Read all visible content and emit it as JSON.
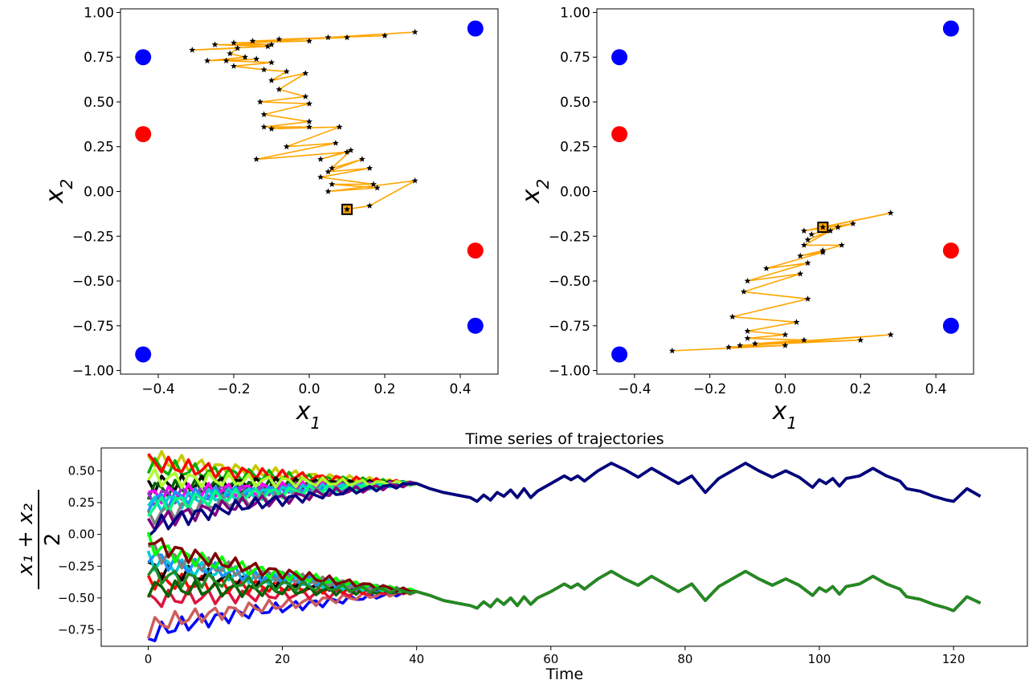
{
  "chart_data": [
    {
      "type": "scatter",
      "panel": "top-left",
      "xlabel": "x",
      "xlabel_sub": "1",
      "ylabel": "x",
      "ylabel_sub": "2",
      "xlim": [
        -0.5,
        0.5
      ],
      "ylim": [
        -1.02,
        1.02
      ],
      "xticks": [
        -0.4,
        -0.2,
        0.0,
        0.2,
        0.4
      ],
      "xtick_labels": [
        "−0.4",
        "−0.2",
        "0.0",
        "0.2",
        "0.4"
      ],
      "yticks": [
        -1.0,
        -0.75,
        -0.5,
        -0.25,
        0.0,
        0.25,
        0.5,
        0.75,
        1.0
      ],
      "ytick_labels": [
        "−1.00",
        "−0.75",
        "−0.50",
        "−0.25",
        "0.00",
        "0.25",
        "0.50",
        "0.75",
        "1.00"
      ],
      "colors": {
        "blue": "#0000ff",
        "red": "#ff0000",
        "path": "#ffa500",
        "marker": "#000000"
      },
      "blue_points": [
        [
          -0.44,
          0.75
        ],
        [
          0.44,
          0.91
        ],
        [
          -0.44,
          -0.91
        ],
        [
          0.44,
          -0.75
        ]
      ],
      "red_points": [
        [
          -0.44,
          0.32
        ],
        [
          0.44,
          -0.33
        ]
      ],
      "start": [
        0.1,
        -0.1
      ],
      "trajectory": [
        [
          0.1,
          -0.1
        ],
        [
          0.16,
          -0.08
        ],
        [
          0.28,
          0.06
        ],
        [
          0.05,
          0.0
        ],
        [
          0.18,
          0.02
        ],
        [
          0.06,
          0.04
        ],
        [
          0.17,
          0.04
        ],
        [
          0.03,
          0.08
        ],
        [
          0.16,
          0.13
        ],
        [
          0.05,
          0.11
        ],
        [
          0.14,
          0.18
        ],
        [
          0.06,
          0.13
        ],
        [
          0.11,
          0.23
        ],
        [
          0.03,
          0.18
        ],
        [
          0.1,
          0.22
        ],
        [
          -0.14,
          0.18
        ],
        [
          0.07,
          0.27
        ],
        [
          -0.06,
          0.25
        ],
        [
          0.08,
          0.36
        ],
        [
          -0.1,
          0.35
        ],
        [
          0.0,
          0.36
        ],
        [
          -0.12,
          0.36
        ],
        [
          0.0,
          0.39
        ],
        [
          -0.12,
          0.43
        ],
        [
          0.0,
          0.49
        ],
        [
          -0.13,
          0.5
        ],
        [
          -0.01,
          0.53
        ],
        [
          -0.08,
          0.57
        ],
        [
          -0.01,
          0.66
        ],
        [
          -0.1,
          0.62
        ],
        [
          -0.06,
          0.67
        ],
        [
          -0.12,
          0.68
        ],
        [
          -0.2,
          0.7
        ],
        [
          -0.1,
          0.72
        ],
        [
          -0.22,
          0.73
        ],
        [
          -0.14,
          0.74
        ],
        [
          -0.27,
          0.73
        ],
        [
          -0.17,
          0.75
        ],
        [
          -0.21,
          0.77
        ],
        [
          -0.19,
          0.8
        ],
        [
          -0.31,
          0.79
        ],
        [
          -0.11,
          0.81
        ],
        [
          -0.25,
          0.82
        ],
        [
          -0.1,
          0.82
        ],
        [
          -0.2,
          0.83
        ],
        [
          0.0,
          0.84
        ],
        [
          -0.15,
          0.84
        ],
        [
          0.1,
          0.86
        ],
        [
          -0.08,
          0.85
        ],
        [
          0.2,
          0.87
        ],
        [
          0.05,
          0.86
        ],
        [
          0.28,
          0.89
        ]
      ]
    },
    {
      "type": "scatter",
      "panel": "top-right",
      "xlabel": "x",
      "xlabel_sub": "1",
      "ylabel": "x",
      "ylabel_sub": "2",
      "xlim": [
        -0.5,
        0.5
      ],
      "ylim": [
        -1.02,
        1.02
      ],
      "xticks": [
        -0.4,
        -0.2,
        0.0,
        0.2,
        0.4
      ],
      "xtick_labels": [
        "−0.4",
        "−0.2",
        "0.0",
        "0.2",
        "0.4"
      ],
      "yticks": [
        -1.0,
        -0.75,
        -0.5,
        -0.25,
        0.0,
        0.25,
        0.5,
        0.75,
        1.0
      ],
      "ytick_labels": [
        "−1.00",
        "−0.75",
        "−0.50",
        "−0.25",
        "0.00",
        "0.25",
        "0.50",
        "0.75",
        "1.00"
      ],
      "colors": {
        "blue": "#0000ff",
        "red": "#ff0000",
        "path": "#ffa500",
        "marker": "#000000"
      },
      "blue_points": [
        [
          -0.44,
          0.75
        ],
        [
          0.44,
          0.91
        ],
        [
          -0.44,
          -0.91
        ],
        [
          0.44,
          -0.75
        ]
      ],
      "red_points": [
        [
          -0.44,
          0.32
        ],
        [
          0.44,
          -0.33
        ]
      ],
      "start": [
        0.1,
        -0.2
      ],
      "trajectory": [
        [
          0.1,
          -0.2
        ],
        [
          0.28,
          -0.12
        ],
        [
          0.05,
          -0.22
        ],
        [
          0.18,
          -0.18
        ],
        [
          0.07,
          -0.24
        ],
        [
          0.14,
          -0.2
        ],
        [
          0.06,
          -0.27
        ],
        [
          0.12,
          -0.22
        ],
        [
          0.05,
          -0.3
        ],
        [
          0.15,
          -0.3
        ],
        [
          0.1,
          -0.33
        ],
        [
          0.04,
          -0.36
        ],
        [
          0.1,
          -0.34
        ],
        [
          -0.05,
          -0.43
        ],
        [
          0.06,
          -0.4
        ],
        [
          -0.1,
          -0.5
        ],
        [
          0.04,
          -0.46
        ],
        [
          -0.11,
          -0.56
        ],
        [
          0.06,
          -0.6
        ],
        [
          -0.14,
          -0.7
        ],
        [
          0.03,
          -0.73
        ],
        [
          -0.1,
          -0.78
        ],
        [
          0.0,
          -0.8
        ],
        [
          -0.1,
          -0.82
        ],
        [
          0.05,
          -0.83
        ],
        [
          -0.08,
          -0.85
        ],
        [
          0.2,
          -0.83
        ],
        [
          -0.12,
          -0.86
        ],
        [
          0.28,
          -0.8
        ],
        [
          -0.15,
          -0.87
        ],
        [
          0.0,
          -0.86
        ],
        [
          -0.3,
          -0.89
        ]
      ]
    },
    {
      "type": "line",
      "panel": "bottom",
      "title": "Time series of trajectories",
      "xlabel": "Time",
      "ylabel_num": "x₁ + x₂",
      "ylabel_den": "2",
      "xlim": [
        -7,
        131
      ],
      "ylim": [
        -0.88,
        0.68
      ],
      "xticks": [
        0,
        20,
        40,
        60,
        80,
        100,
        120
      ],
      "yticks": [
        -0.75,
        -0.5,
        -0.25,
        0.0,
        0.25,
        0.5
      ],
      "ytick_labels": [
        "−0.75",
        "−0.50",
        "−0.25",
        "0.00",
        "0.25",
        "0.50"
      ],
      "upper_tail": [
        [
          40,
          0.4
        ],
        [
          42,
          0.36
        ],
        [
          44,
          0.33
        ],
        [
          46,
          0.31
        ],
        [
          48,
          0.29
        ],
        [
          49,
          0.26
        ],
        [
          50,
          0.31
        ],
        [
          51,
          0.27
        ],
        [
          52,
          0.33
        ],
        [
          53,
          0.3
        ],
        [
          54,
          0.35
        ],
        [
          55,
          0.29
        ],
        [
          56,
          0.36
        ],
        [
          57,
          0.29
        ],
        [
          58,
          0.34
        ],
        [
          60,
          0.4
        ],
        [
          62,
          0.46
        ],
        [
          63,
          0.43
        ],
        [
          64,
          0.46
        ],
        [
          65,
          0.42
        ],
        [
          67,
          0.5
        ],
        [
          69,
          0.56
        ],
        [
          71,
          0.51
        ],
        [
          73,
          0.45
        ],
        [
          75,
          0.52
        ],
        [
          77,
          0.46
        ],
        [
          79,
          0.4
        ],
        [
          81,
          0.46
        ],
        [
          83,
          0.33
        ],
        [
          85,
          0.44
        ],
        [
          87,
          0.5
        ],
        [
          89,
          0.56
        ],
        [
          91,
          0.5
        ],
        [
          93,
          0.45
        ],
        [
          95,
          0.5
        ],
        [
          97,
          0.45
        ],
        [
          99,
          0.37
        ],
        [
          100,
          0.43
        ],
        [
          101,
          0.4
        ],
        [
          102,
          0.44
        ],
        [
          103,
          0.38
        ],
        [
          104,
          0.44
        ],
        [
          106,
          0.46
        ],
        [
          108,
          0.52
        ],
        [
          110,
          0.46
        ],
        [
          112,
          0.42
        ],
        [
          113,
          0.36
        ],
        [
          115,
          0.34
        ],
        [
          117,
          0.3
        ],
        [
          119,
          0.27
        ],
        [
          120,
          0.26
        ],
        [
          122,
          0.36
        ],
        [
          124,
          0.3
        ]
      ],
      "lower_tail": [
        [
          40,
          -0.45
        ],
        [
          42,
          -0.48
        ],
        [
          44,
          -0.52
        ],
        [
          46,
          -0.54
        ],
        [
          48,
          -0.56
        ],
        [
          49,
          -0.58
        ],
        [
          50,
          -0.53
        ],
        [
          51,
          -0.57
        ],
        [
          52,
          -0.51
        ],
        [
          53,
          -0.55
        ],
        [
          54,
          -0.5
        ],
        [
          55,
          -0.56
        ],
        [
          56,
          -0.49
        ],
        [
          57,
          -0.55
        ],
        [
          58,
          -0.5
        ],
        [
          60,
          -0.45
        ],
        [
          62,
          -0.39
        ],
        [
          63,
          -0.42
        ],
        [
          64,
          -0.39
        ],
        [
          65,
          -0.43
        ],
        [
          67,
          -0.35
        ],
        [
          69,
          -0.29
        ],
        [
          71,
          -0.35
        ],
        [
          73,
          -0.4
        ],
        [
          75,
          -0.33
        ],
        [
          77,
          -0.39
        ],
        [
          79,
          -0.45
        ],
        [
          81,
          -0.39
        ],
        [
          83,
          -0.52
        ],
        [
          85,
          -0.41
        ],
        [
          87,
          -0.35
        ],
        [
          89,
          -0.29
        ],
        [
          91,
          -0.35
        ],
        [
          93,
          -0.4
        ],
        [
          95,
          -0.35
        ],
        [
          97,
          -0.4
        ],
        [
          99,
          -0.48
        ],
        [
          100,
          -0.42
        ],
        [
          101,
          -0.45
        ],
        [
          102,
          -0.41
        ],
        [
          103,
          -0.47
        ],
        [
          104,
          -0.41
        ],
        [
          106,
          -0.39
        ],
        [
          108,
          -0.33
        ],
        [
          110,
          -0.39
        ],
        [
          112,
          -0.43
        ],
        [
          113,
          -0.49
        ],
        [
          115,
          -0.51
        ],
        [
          117,
          -0.55
        ],
        [
          119,
          -0.58
        ],
        [
          120,
          -0.6
        ],
        [
          122,
          -0.49
        ],
        [
          124,
          -0.54
        ]
      ],
      "upper_series": [
        {
          "color": "#c8c800",
          "start": 0.62
        },
        {
          "color": "#00b000",
          "start": 0.55
        },
        {
          "color": "#ff0000",
          "start": 0.58
        },
        {
          "color": "#000000",
          "start": 0.4
        },
        {
          "color": "#006400",
          "start": 0.35
        },
        {
          "color": "#ff00ff",
          "start": 0.3
        },
        {
          "color": "#9932cc",
          "start": 0.28
        },
        {
          "color": "#1e90ff",
          "start": 0.25
        },
        {
          "color": "#00ced1",
          "start": 0.22
        },
        {
          "color": "#808080",
          "start": 0.12
        },
        {
          "color": "#00ff7f",
          "start": 0.2
        },
        {
          "color": "#adff2f",
          "start": 0.45
        },
        {
          "color": "#800080",
          "start": 0.05
        },
        {
          "color": "#000080",
          "start": 0.02
        }
      ],
      "lower_series": [
        {
          "color": "#0000ff",
          "start": -0.82
        },
        {
          "color": "#cd5c5c",
          "start": -0.75
        },
        {
          "color": "#dc143c",
          "start": -0.52
        },
        {
          "color": "#ff0000",
          "start": -0.35
        },
        {
          "color": "#006400",
          "start": -0.42
        },
        {
          "color": "#000000",
          "start": -0.25
        },
        {
          "color": "#00ced1",
          "start": -0.18
        },
        {
          "color": "#1e90ff",
          "start": -0.15
        },
        {
          "color": "#808080",
          "start": -0.1
        },
        {
          "color": "#00ff00",
          "start": -0.05
        },
        {
          "color": "#800000",
          "start": -0.02
        },
        {
          "color": "#228b22",
          "start": -0.3
        }
      ]
    }
  ]
}
